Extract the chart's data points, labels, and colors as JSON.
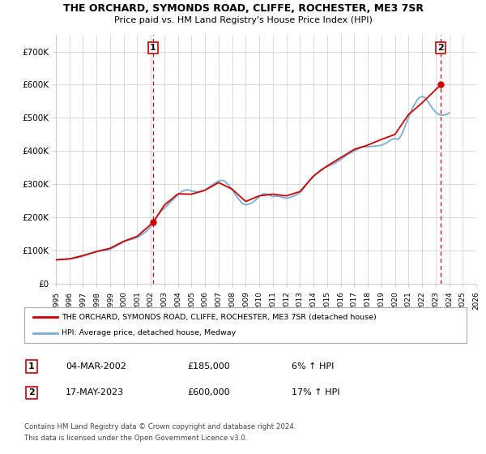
{
  "title": "THE ORCHARD, SYMONDS ROAD, CLIFFE, ROCHESTER, ME3 7SR",
  "subtitle": "Price paid vs. HM Land Registry's House Price Index (HPI)",
  "legend_line1": "THE ORCHARD, SYMONDS ROAD, CLIFFE, ROCHESTER, ME3 7SR (detached house)",
  "legend_line2": "HPI: Average price, detached house, Medway",
  "transaction1_label": "1",
  "transaction1_date": "04-MAR-2002",
  "transaction1_price": "£185,000",
  "transaction1_hpi": "6% ↑ HPI",
  "transaction2_label": "2",
  "transaction2_date": "17-MAY-2023",
  "transaction2_price": "£600,000",
  "transaction2_hpi": "17% ↑ HPI",
  "footer1": "Contains HM Land Registry data © Crown copyright and database right 2024.",
  "footer2": "This data is licensed under the Open Government Licence v3.0.",
  "hpi_color": "#7aadd4",
  "price_color": "#cc0000",
  "marker_color": "#cc0000",
  "vline_color": "#cc0000",
  "background_color": "#ffffff",
  "grid_color": "#cccccc",
  "ylim": [
    0,
    750000
  ],
  "yticks": [
    0,
    100000,
    200000,
    300000,
    400000,
    500000,
    600000,
    700000
  ],
  "ytick_labels": [
    "£0",
    "£100K",
    "£200K",
    "£300K",
    "£400K",
    "£500K",
    "£600K",
    "£700K"
  ],
  "hpi_data": {
    "years": [
      1995.0,
      1995.25,
      1995.5,
      1995.75,
      1996.0,
      1996.25,
      1996.5,
      1996.75,
      1997.0,
      1997.25,
      1997.5,
      1997.75,
      1998.0,
      1998.25,
      1998.5,
      1998.75,
      1999.0,
      1999.25,
      1999.5,
      1999.75,
      2000.0,
      2000.25,
      2000.5,
      2000.75,
      2001.0,
      2001.25,
      2001.5,
      2001.75,
      2002.0,
      2002.25,
      2002.5,
      2002.75,
      2003.0,
      2003.25,
      2003.5,
      2003.75,
      2004.0,
      2004.25,
      2004.5,
      2004.75,
      2005.0,
      2005.25,
      2005.5,
      2005.75,
      2006.0,
      2006.25,
      2006.5,
      2006.75,
      2007.0,
      2007.25,
      2007.5,
      2007.75,
      2008.0,
      2008.25,
      2008.5,
      2008.75,
      2009.0,
      2009.25,
      2009.5,
      2009.75,
      2010.0,
      2010.25,
      2010.5,
      2010.75,
      2011.0,
      2011.25,
      2011.5,
      2011.75,
      2012.0,
      2012.25,
      2012.5,
      2012.75,
      2013.0,
      2013.25,
      2013.5,
      2013.75,
      2014.0,
      2014.25,
      2014.5,
      2014.75,
      2015.0,
      2015.25,
      2015.5,
      2015.75,
      2016.0,
      2016.25,
      2016.5,
      2016.75,
      2017.0,
      2017.25,
      2017.5,
      2017.75,
      2018.0,
      2018.25,
      2018.5,
      2018.75,
      2019.0,
      2019.25,
      2019.5,
      2019.75,
      2020.0,
      2020.25,
      2020.5,
      2020.75,
      2021.0,
      2021.25,
      2021.5,
      2021.75,
      2022.0,
      2022.25,
      2022.5,
      2022.75,
      2023.0,
      2023.25,
      2023.5,
      2023.75,
      2024.0
    ],
    "values": [
      72000,
      73000,
      74000,
      74500,
      75000,
      76000,
      78000,
      80000,
      83000,
      87000,
      91000,
      94000,
      97000,
      99000,
      100000,
      101000,
      104000,
      109000,
      115000,
      121000,
      126000,
      130000,
      133000,
      136000,
      140000,
      146000,
      153000,
      161000,
      172000,
      188000,
      205000,
      218000,
      228000,
      238000,
      248000,
      258000,
      268000,
      277000,
      282000,
      283000,
      280000,
      278000,
      277000,
      278000,
      282000,
      290000,
      297000,
      304000,
      310000,
      312000,
      308000,
      296000,
      283000,
      268000,
      254000,
      242000,
      238000,
      240000,
      245000,
      253000,
      263000,
      271000,
      271000,
      267000,
      263000,
      264000,
      263000,
      260000,
      258000,
      260000,
      264000,
      268000,
      275000,
      286000,
      300000,
      313000,
      323000,
      333000,
      343000,
      349000,
      353000,
      357000,
      362000,
      368000,
      374000,
      382000,
      390000,
      395000,
      400000,
      406000,
      411000,
      413000,
      413000,
      414000,
      415000,
      416000,
      418000,
      422000,
      428000,
      435000,
      438000,
      435000,
      450000,
      475000,
      500000,
      525000,
      545000,
      560000,
      565000,
      560000,
      545000,
      530000,
      518000,
      510000,
      508000,
      510000,
      515000
    ]
  },
  "price_data": {
    "years": [
      1995.0,
      1996.0,
      1997.0,
      1998.0,
      1999.0,
      2000.0,
      2001.0,
      2002.17,
      2003.0,
      2004.0,
      2005.0,
      2006.0,
      2007.0,
      2008.0,
      2009.0,
      2010.0,
      2011.0,
      2012.0,
      2013.0,
      2014.0,
      2015.0,
      2016.0,
      2017.0,
      2018.0,
      2019.0,
      2020.0,
      2021.0,
      2022.0,
      2023.38
    ],
    "values": [
      72000,
      75000,
      85000,
      97000,
      107000,
      128000,
      143000,
      185000,
      237000,
      271000,
      270000,
      282000,
      305000,
      285000,
      248000,
      265000,
      270000,
      265000,
      278000,
      325000,
      355000,
      380000,
      405000,
      418000,
      435000,
      450000,
      510000,
      545000,
      600000
    ]
  },
  "transaction1_x": 2002.17,
  "transaction2_x": 2023.38,
  "transaction1_y": 185000,
  "transaction2_y": 600000,
  "xmin": 1995,
  "xmax": 2026
}
